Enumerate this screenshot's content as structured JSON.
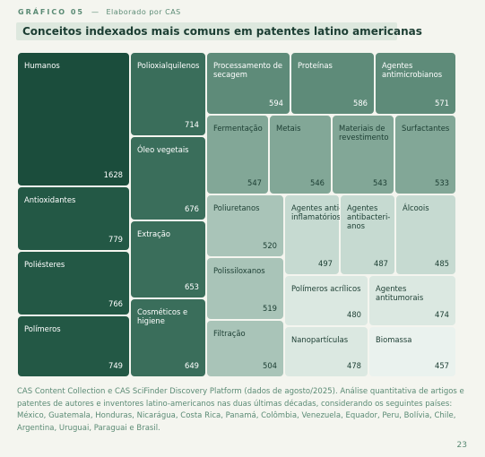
{
  "header": {
    "label": "GRÁFICO 05",
    "separator": "—",
    "author": "Elaborado por CAS"
  },
  "title": "Conceitos indexados mais comuns em patentes latino americanas",
  "chart_data": {
    "type": "treemap",
    "items": [
      {
        "name": "Humanos",
        "value": 1628,
        "color": "#1b4d3c",
        "text": "#ffffff"
      },
      {
        "name": "Antioxidantes",
        "value": 779,
        "color": "#235845",
        "text": "#ffffff"
      },
      {
        "name": "Poliésteres",
        "value": 766,
        "color": "#235845",
        "text": "#ffffff"
      },
      {
        "name": "Polímeros",
        "value": 749,
        "color": "#235845",
        "text": "#ffffff"
      },
      {
        "name": "Polioxialquilenos",
        "value": 714,
        "color": "#3a6e5b",
        "text": "#ffffff"
      },
      {
        "name": "Óleo vegetais",
        "value": 676,
        "color": "#3a6e5b",
        "text": "#ffffff"
      },
      {
        "name": "Extração",
        "value": 653,
        "color": "#3a6e5b",
        "text": "#ffffff"
      },
      {
        "name": "Cosméticos e\nhigiene",
        "value": 649,
        "color": "#3a6e5b",
        "text": "#ffffff"
      },
      {
        "name": "Processamento de\nsecagem",
        "value": 594,
        "color": "#5e8b79",
        "text": "#ffffff"
      },
      {
        "name": "Proteínas",
        "value": 586,
        "color": "#5e8b79",
        "text": "#ffffff"
      },
      {
        "name": "Agentes\nantimicrobianos",
        "value": 571,
        "color": "#5e8b79",
        "text": "#ffffff"
      },
      {
        "name": "Fermentação",
        "value": 547,
        "color": "#82a797",
        "text": "#1b3d32"
      },
      {
        "name": "Metais",
        "value": 546,
        "color": "#82a797",
        "text": "#1b3d32"
      },
      {
        "name": "Materiais de\nrevestimento",
        "value": 543,
        "color": "#82a797",
        "text": "#1b3d32"
      },
      {
        "name": "Surfactantes",
        "value": 533,
        "color": "#82a797",
        "text": "#1b3d32"
      },
      {
        "name": "Poliuretanos",
        "value": 520,
        "color": "#a9c4b8",
        "text": "#1b3d32"
      },
      {
        "name": "Polissiloxanos",
        "value": 519,
        "color": "#a9c4b8",
        "text": "#1b3d32"
      },
      {
        "name": "Filtração",
        "value": 504,
        "color": "#a9c4b8",
        "text": "#1b3d32"
      },
      {
        "name": "Agentes anti-\ninflamatórios",
        "value": 497,
        "color": "#c6dad1",
        "text": "#1b3d32"
      },
      {
        "name": "Agentes\nantibacteri-\nanos",
        "value": 487,
        "color": "#c6dad1",
        "text": "#1b3d32"
      },
      {
        "name": "Álcoois",
        "value": 485,
        "color": "#c6dad1",
        "text": "#1b3d32"
      },
      {
        "name": "Polímeros acrílicos",
        "value": 480,
        "color": "#dbe8e1",
        "text": "#1b3d32"
      },
      {
        "name": "Agentes\nantitumorais",
        "value": 474,
        "color": "#dbe8e1",
        "text": "#1b3d32"
      },
      {
        "name": "Nanopartículas",
        "value": 478,
        "color": "#dbe8e1",
        "text": "#1b3d32"
      },
      {
        "name": "Biomassa",
        "value": 457,
        "color": "#eaf2ee",
        "text": "#1b3d32"
      }
    ]
  },
  "source": "CAS Content Collection e CAS SciFinder Discovery Platform (dados de agosto/2025). Análise quantitativa de artigos e patentes de autores e inventores latino-americanos nas duas últimas décadas, considerando os seguintes países: México, Guatemala, Honduras, Nicarágua, Costa Rica, Panamá, Colômbia, Venezuela, Equador, Peru, Bolívia, Chile, Argentina, Uruguai, Paraguai e Brasil.",
  "page_number": "23"
}
